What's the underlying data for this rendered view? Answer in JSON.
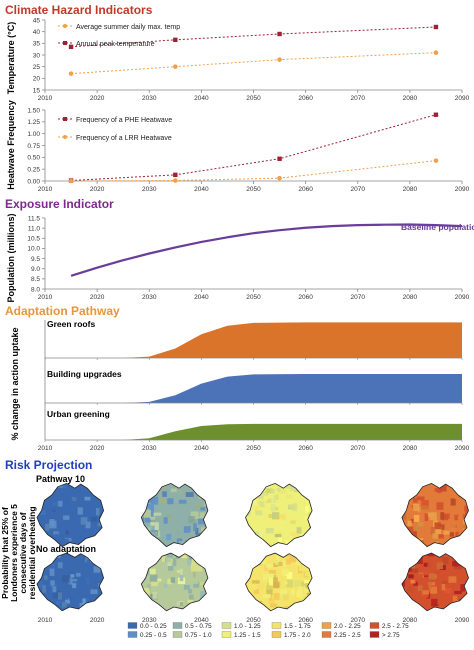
{
  "sections": {
    "climate_title": "Climate Hazard Indicators",
    "exposure_title": "Exposure Indicator",
    "adaptation_title": "Adaptation Pathway",
    "risk_title": "Risk Projection"
  },
  "colors": {
    "climate_title": "#c0392b",
    "exposure_title": "#7b2a8c",
    "adaptation_title": "#e8953c",
    "risk_title": "#1f3fbf",
    "dark_red": "#9b2335",
    "orange": "#f0a04b",
    "purple_line": "#6a3d9a",
    "fill_orange": "#d9742a",
    "fill_blue": "#4c72b8",
    "fill_green": "#6d8f2e"
  },
  "x_ticks": [
    "2010",
    "2020",
    "2030",
    "2040",
    "2050",
    "2060",
    "2070",
    "2080",
    "2090"
  ],
  "temperature": {
    "ylabel": "Temperature (°C)",
    "y_ticks": [
      "15",
      "20",
      "25",
      "30",
      "35",
      "40",
      "45"
    ],
    "legend": [
      "Average summer daily max. temp",
      "Annual peak temperature"
    ]
  },
  "heatwave": {
    "ylabel": "Heatwave Frequency",
    "y_ticks": [
      "0.00",
      "0.25",
      "0.50",
      "0.75",
      "1.00",
      "1.25",
      "1.50"
    ],
    "legend": [
      "Frequency of a PHE Heatwave",
      "Frequency of a LRR Heatwave"
    ]
  },
  "exposure": {
    "ylabel": "Population (millions)",
    "y_ticks": [
      "8.0",
      "8.5",
      "9.0",
      "9.5",
      "10.0",
      "10.5",
      "11.0",
      "11.5"
    ],
    "series_label": "Baseline population"
  },
  "adaptation": {
    "ylabel": "% change in action uptake",
    "y_ticks": [
      "0",
      "20",
      "40",
      "60",
      "80"
    ],
    "panel_labels": [
      "Green roofs",
      "Building upgrades",
      "Urban greening"
    ]
  },
  "risk": {
    "ylabel": "Probability that 25% of Londoners experience 5 consecutive days of residential overheating",
    "row_labels": [
      "Pathway 10",
      "No adaptation"
    ],
    "legend": [
      {
        "label": "0.0 - 0.25",
        "color": "#3a69b0"
      },
      {
        "label": "0.25 - 0.5",
        "color": "#5f8fc4"
      },
      {
        "label": "0.5 - 0.75",
        "color": "#8fb0a8"
      },
      {
        "label": "0.75 - 1.0",
        "color": "#b6c99a"
      },
      {
        "label": "1.0 - 1.25",
        "color": "#d6e08a"
      },
      {
        "label": "1.25 - 1.5",
        "color": "#eef07a"
      },
      {
        "label": "1.5 - 1.75",
        "color": "#f5e46a"
      },
      {
        "label": "1.75 - 2.0",
        "color": "#f3c95a"
      },
      {
        "label": "2.0 - 2.25",
        "color": "#eda24a"
      },
      {
        "label": "2.25 - 2.5",
        "color": "#e27a3a"
      },
      {
        "label": "2.5 - 2.75",
        "color": "#d3502d"
      },
      {
        "label": "> 2.75",
        "color": "#b52121"
      }
    ],
    "maps": [
      {
        "row": 0,
        "year": 2015,
        "level": 0
      },
      {
        "row": 0,
        "year": 2035,
        "level": 2
      },
      {
        "row": 0,
        "year": 2055,
        "level": 5
      },
      {
        "row": 0,
        "year": 2085,
        "level": 9
      },
      {
        "row": 1,
        "year": 2015,
        "level": 0
      },
      {
        "row": 1,
        "year": 2035,
        "level": 3
      },
      {
        "row": 1,
        "year": 2055,
        "level": 6
      },
      {
        "row": 1,
        "year": 2085,
        "level": 10
      }
    ]
  },
  "chart_data": [
    {
      "type": "line",
      "ylabel": "Temperature (°C)",
      "ylim": [
        15,
        45
      ],
      "xlim": [
        2010,
        2090
      ],
      "legend_placement": "top-left",
      "series": [
        {
          "name": "Average summer daily max. temp",
          "x": [
            2015,
            2035,
            2055,
            2085
          ],
          "values": [
            22,
            25,
            28,
            31
          ]
        },
        {
          "name": "Annual peak temperature",
          "x": [
            2015,
            2035,
            2055,
            2085
          ],
          "values": [
            33.5,
            36.5,
            39,
            42
          ]
        }
      ]
    },
    {
      "type": "line",
      "ylabel": "Heatwave Frequency",
      "ylim": [
        0,
        1.5
      ],
      "xlim": [
        2010,
        2090
      ],
      "legend_placement": "top-left",
      "series": [
        {
          "name": "Frequency of a PHE Heatwave",
          "x": [
            2015,
            2035,
            2055,
            2085
          ],
          "values": [
            0.01,
            0.13,
            0.47,
            1.4
          ]
        },
        {
          "name": "Frequency of a LRR Heatwave",
          "x": [
            2015,
            2035,
            2055,
            2085
          ],
          "values": [
            0.0,
            0.01,
            0.06,
            0.43
          ]
        }
      ]
    },
    {
      "type": "line",
      "ylabel": "Population (millions)",
      "ylim": [
        8.0,
        11.5
      ],
      "xlim": [
        2010,
        2090
      ],
      "series": [
        {
          "name": "Baseline population",
          "x": [
            2015,
            2020,
            2025,
            2030,
            2035,
            2040,
            2045,
            2050,
            2055,
            2060,
            2065,
            2070,
            2075,
            2080,
            2085,
            2090
          ],
          "values": [
            8.65,
            9.05,
            9.42,
            9.75,
            10.05,
            10.32,
            10.55,
            10.75,
            10.9,
            11.02,
            11.1,
            11.15,
            11.17,
            11.18,
            11.15,
            11.1
          ]
        }
      ]
    },
    {
      "type": "area",
      "ylabel": "% change in action uptake",
      "ylim": [
        0,
        80
      ],
      "xlim": [
        2010,
        2090
      ],
      "series": [
        {
          "name": "Green roofs",
          "x": [
            2015,
            2025,
            2030,
            2035,
            2040,
            2045,
            2050,
            2060,
            2090
          ],
          "values": [
            0,
            0,
            3,
            20,
            50,
            68,
            74,
            75,
            75
          ]
        },
        {
          "name": "Building upgrades",
          "x": [
            2015,
            2025,
            2030,
            2035,
            2040,
            2045,
            2050,
            2060,
            2090
          ],
          "values": [
            0,
            0,
            3,
            20,
            50,
            68,
            74,
            75,
            75
          ]
        },
        {
          "name": "Urban greening",
          "x": [
            2015,
            2025,
            2030,
            2035,
            2040,
            2045,
            2050,
            2060,
            2090
          ],
          "values": [
            0,
            0,
            5,
            25,
            40,
            45,
            46,
            46,
            46
          ]
        }
      ]
    }
  ]
}
